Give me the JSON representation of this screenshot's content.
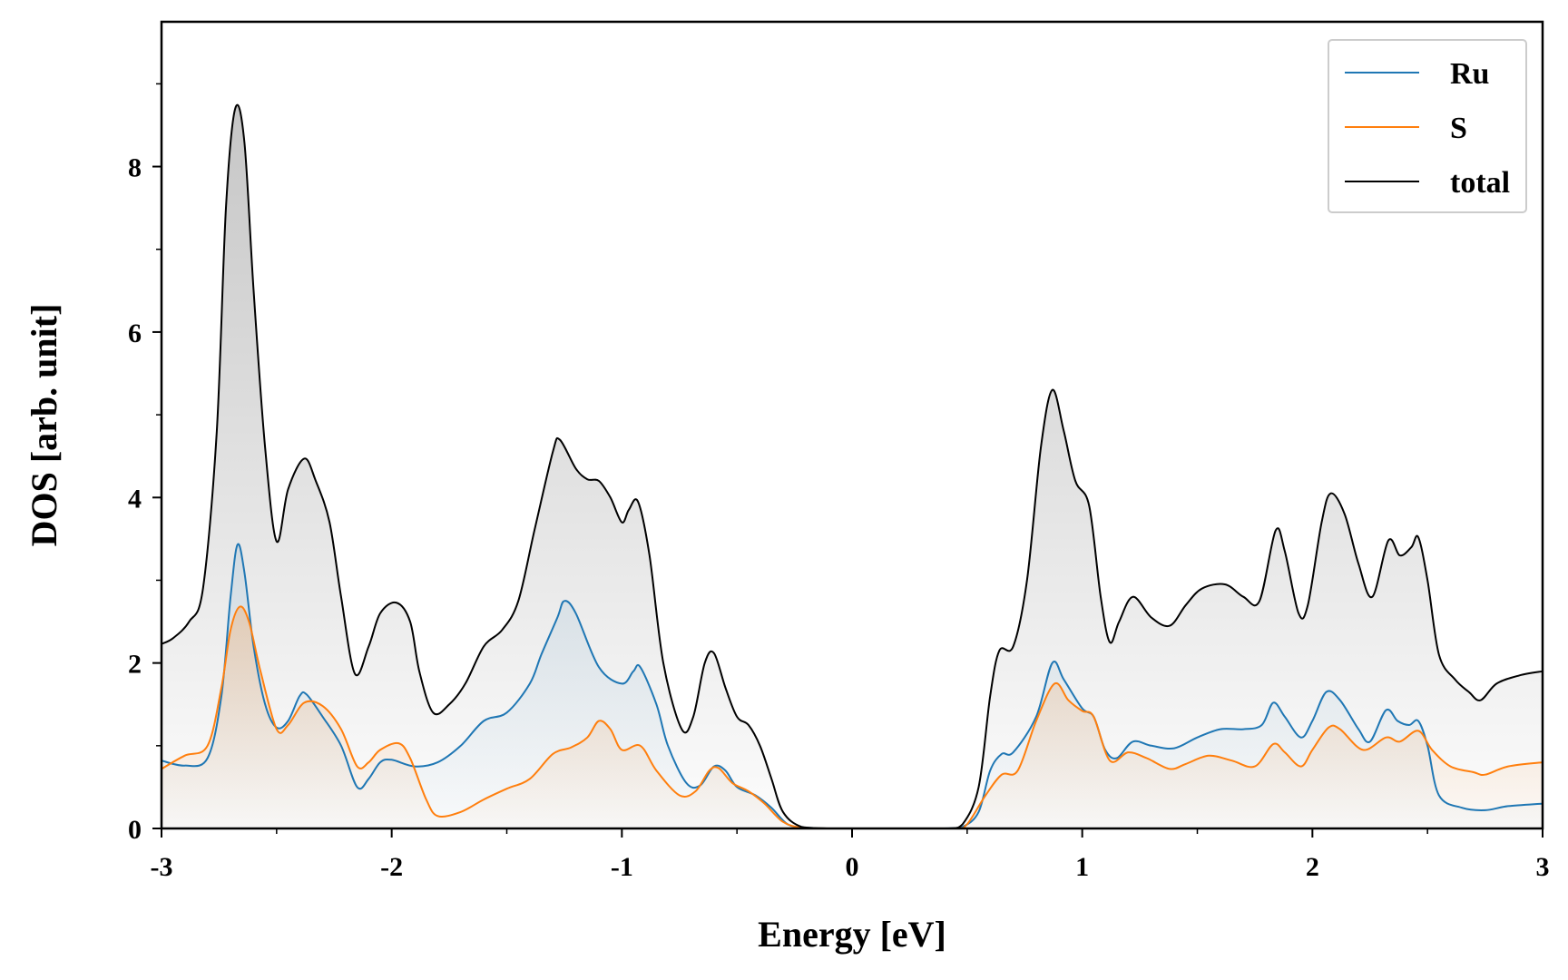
{
  "chart_data": {
    "type": "line",
    "xlabel": "Energy [eV]",
    "ylabel": "DOS [arb. unit]",
    "xlim": [
      -3,
      3
    ],
    "ylim": [
      0,
      9.75
    ],
    "xticks": [
      -3,
      -2,
      -1,
      0,
      1,
      2,
      3
    ],
    "xtick_labels": [
      "-3",
      "-2",
      "-1",
      "0",
      "1",
      "2",
      "3"
    ],
    "yticks": [
      0,
      2,
      4,
      6,
      8
    ],
    "ytick_labels": [
      "0",
      "2",
      "4",
      "6",
      "8"
    ],
    "grid": false,
    "legend_position": "top-right",
    "fill_under_curves": true,
    "series": [
      {
        "name": "Ru",
        "color": "#1f77b4",
        "points": [
          [
            -3.0,
            0.82
          ],
          [
            -2.9,
            0.76
          ],
          [
            -2.8,
            0.85
          ],
          [
            -2.74,
            1.6
          ],
          [
            -2.7,
            2.8
          ],
          [
            -2.67,
            3.43
          ],
          [
            -2.64,
            3.1
          ],
          [
            -2.6,
            2.2
          ],
          [
            -2.55,
            1.5
          ],
          [
            -2.5,
            1.22
          ],
          [
            -2.45,
            1.3
          ],
          [
            -2.4,
            1.6
          ],
          [
            -2.37,
            1.62
          ],
          [
            -2.3,
            1.35
          ],
          [
            -2.22,
            1.0
          ],
          [
            -2.15,
            0.5
          ],
          [
            -2.1,
            0.6
          ],
          [
            -2.05,
            0.8
          ],
          [
            -2.0,
            0.83
          ],
          [
            -1.9,
            0.75
          ],
          [
            -1.8,
            0.8
          ],
          [
            -1.7,
            1.0
          ],
          [
            -1.6,
            1.3
          ],
          [
            -1.5,
            1.4
          ],
          [
            -1.4,
            1.75
          ],
          [
            -1.35,
            2.1
          ],
          [
            -1.28,
            2.55
          ],
          [
            -1.25,
            2.75
          ],
          [
            -1.2,
            2.6
          ],
          [
            -1.1,
            1.95
          ],
          [
            -1.0,
            1.75
          ],
          [
            -0.95,
            1.9
          ],
          [
            -0.92,
            1.95
          ],
          [
            -0.85,
            1.5
          ],
          [
            -0.8,
            1.0
          ],
          [
            -0.72,
            0.55
          ],
          [
            -0.66,
            0.52
          ],
          [
            -0.6,
            0.75
          ],
          [
            -0.55,
            0.7
          ],
          [
            -0.5,
            0.5
          ],
          [
            -0.42,
            0.4
          ],
          [
            -0.35,
            0.25
          ],
          [
            -0.28,
            0.05
          ],
          [
            -0.2,
            0.01
          ],
          [
            -0.1,
            0.0
          ],
          [
            0.0,
            0.0
          ],
          [
            0.2,
            0.0
          ],
          [
            0.4,
            0.0
          ],
          [
            0.48,
            0.02
          ],
          [
            0.55,
            0.2
          ],
          [
            0.6,
            0.7
          ],
          [
            0.65,
            0.9
          ],
          [
            0.7,
            0.92
          ],
          [
            0.8,
            1.35
          ],
          [
            0.87,
            2.0
          ],
          [
            0.92,
            1.8
          ],
          [
            1.0,
            1.45
          ],
          [
            1.05,
            1.35
          ],
          [
            1.1,
            0.95
          ],
          [
            1.15,
            0.85
          ],
          [
            1.22,
            1.05
          ],
          [
            1.3,
            1.0
          ],
          [
            1.4,
            0.97
          ],
          [
            1.5,
            1.1
          ],
          [
            1.6,
            1.2
          ],
          [
            1.7,
            1.2
          ],
          [
            1.78,
            1.25
          ],
          [
            1.83,
            1.52
          ],
          [
            1.88,
            1.35
          ],
          [
            1.95,
            1.1
          ],
          [
            2.0,
            1.3
          ],
          [
            2.06,
            1.65
          ],
          [
            2.12,
            1.55
          ],
          [
            2.2,
            1.2
          ],
          [
            2.25,
            1.05
          ],
          [
            2.32,
            1.43
          ],
          [
            2.37,
            1.3
          ],
          [
            2.42,
            1.25
          ],
          [
            2.46,
            1.3
          ],
          [
            2.5,
            1.0
          ],
          [
            2.55,
            0.4
          ],
          [
            2.65,
            0.25
          ],
          [
            2.75,
            0.22
          ],
          [
            2.85,
            0.27
          ],
          [
            3.0,
            0.3
          ]
        ]
      },
      {
        "name": "S",
        "color": "#ff7f0e",
        "points": [
          [
            -3.0,
            0.72
          ],
          [
            -2.9,
            0.88
          ],
          [
            -2.8,
            1.0
          ],
          [
            -2.74,
            1.7
          ],
          [
            -2.7,
            2.4
          ],
          [
            -2.66,
            2.68
          ],
          [
            -2.62,
            2.5
          ],
          [
            -2.57,
            1.9
          ],
          [
            -2.5,
            1.2
          ],
          [
            -2.45,
            1.25
          ],
          [
            -2.38,
            1.52
          ],
          [
            -2.3,
            1.48
          ],
          [
            -2.22,
            1.2
          ],
          [
            -2.15,
            0.75
          ],
          [
            -2.1,
            0.8
          ],
          [
            -2.05,
            0.95
          ],
          [
            -1.97,
            1.03
          ],
          [
            -1.92,
            0.85
          ],
          [
            -1.85,
            0.35
          ],
          [
            -1.8,
            0.15
          ],
          [
            -1.7,
            0.2
          ],
          [
            -1.6,
            0.35
          ],
          [
            -1.5,
            0.48
          ],
          [
            -1.4,
            0.6
          ],
          [
            -1.3,
            0.9
          ],
          [
            -1.22,
            0.98
          ],
          [
            -1.15,
            1.1
          ],
          [
            -1.1,
            1.3
          ],
          [
            -1.05,
            1.2
          ],
          [
            -1.0,
            0.95
          ],
          [
            -0.92,
            1.0
          ],
          [
            -0.85,
            0.7
          ],
          [
            -0.75,
            0.4
          ],
          [
            -0.68,
            0.45
          ],
          [
            -0.62,
            0.7
          ],
          [
            -0.58,
            0.73
          ],
          [
            -0.52,
            0.55
          ],
          [
            -0.45,
            0.45
          ],
          [
            -0.38,
            0.3
          ],
          [
            -0.3,
            0.08
          ],
          [
            -0.22,
            0.01
          ],
          [
            -0.1,
            0.0
          ],
          [
            0.0,
            0.0
          ],
          [
            0.2,
            0.0
          ],
          [
            0.45,
            0.0
          ],
          [
            0.5,
            0.05
          ],
          [
            0.58,
            0.4
          ],
          [
            0.65,
            0.65
          ],
          [
            0.72,
            0.7
          ],
          [
            0.8,
            1.3
          ],
          [
            0.88,
            1.75
          ],
          [
            0.94,
            1.55
          ],
          [
            1.0,
            1.42
          ],
          [
            1.05,
            1.35
          ],
          [
            1.12,
            0.82
          ],
          [
            1.2,
            0.92
          ],
          [
            1.28,
            0.85
          ],
          [
            1.38,
            0.72
          ],
          [
            1.45,
            0.78
          ],
          [
            1.55,
            0.88
          ],
          [
            1.65,
            0.82
          ],
          [
            1.75,
            0.75
          ],
          [
            1.83,
            1.02
          ],
          [
            1.88,
            0.92
          ],
          [
            1.95,
            0.75
          ],
          [
            2.0,
            0.95
          ],
          [
            2.07,
            1.22
          ],
          [
            2.12,
            1.2
          ],
          [
            2.22,
            0.95
          ],
          [
            2.32,
            1.1
          ],
          [
            2.38,
            1.05
          ],
          [
            2.46,
            1.18
          ],
          [
            2.52,
            0.95
          ],
          [
            2.6,
            0.75
          ],
          [
            2.7,
            0.68
          ],
          [
            2.75,
            0.65
          ],
          [
            2.85,
            0.75
          ],
          [
            3.0,
            0.8
          ]
        ]
      },
      {
        "name": "total",
        "color": "#000000",
        "points": [
          [
            -3.0,
            2.23
          ],
          [
            -2.95,
            2.3
          ],
          [
            -2.88,
            2.5
          ],
          [
            -2.82,
            2.9
          ],
          [
            -2.76,
            4.8
          ],
          [
            -2.72,
            7.5
          ],
          [
            -2.68,
            8.7
          ],
          [
            -2.64,
            8.3
          ],
          [
            -2.6,
            6.5
          ],
          [
            -2.55,
            4.6
          ],
          [
            -2.5,
            3.47
          ],
          [
            -2.45,
            4.1
          ],
          [
            -2.38,
            4.47
          ],
          [
            -2.33,
            4.2
          ],
          [
            -2.27,
            3.7
          ],
          [
            -2.22,
            2.8
          ],
          [
            -2.16,
            1.87
          ],
          [
            -2.1,
            2.2
          ],
          [
            -2.05,
            2.6
          ],
          [
            -1.98,
            2.73
          ],
          [
            -1.92,
            2.5
          ],
          [
            -1.88,
            1.9
          ],
          [
            -1.82,
            1.4
          ],
          [
            -1.75,
            1.5
          ],
          [
            -1.68,
            1.75
          ],
          [
            -1.6,
            2.2
          ],
          [
            -1.52,
            2.4
          ],
          [
            -1.45,
            2.75
          ],
          [
            -1.38,
            3.6
          ],
          [
            -1.3,
            4.55
          ],
          [
            -1.27,
            4.7
          ],
          [
            -1.2,
            4.35
          ],
          [
            -1.15,
            4.22
          ],
          [
            -1.1,
            4.2
          ],
          [
            -1.05,
            4.0
          ],
          [
            -1.0,
            3.7
          ],
          [
            -0.97,
            3.85
          ],
          [
            -0.93,
            3.95
          ],
          [
            -0.88,
            3.3
          ],
          [
            -0.82,
            2.0
          ],
          [
            -0.74,
            1.2
          ],
          [
            -0.69,
            1.35
          ],
          [
            -0.64,
            2.0
          ],
          [
            -0.6,
            2.12
          ],
          [
            -0.55,
            1.7
          ],
          [
            -0.5,
            1.35
          ],
          [
            -0.45,
            1.25
          ],
          [
            -0.4,
            1.0
          ],
          [
            -0.35,
            0.6
          ],
          [
            -0.3,
            0.2
          ],
          [
            -0.22,
            0.02
          ],
          [
            -0.1,
            0.0
          ],
          [
            0.0,
            0.0
          ],
          [
            0.2,
            0.0
          ],
          [
            0.42,
            0.0
          ],
          [
            0.48,
            0.05
          ],
          [
            0.55,
            0.5
          ],
          [
            0.6,
            1.6
          ],
          [
            0.64,
            2.15
          ],
          [
            0.7,
            2.2
          ],
          [
            0.76,
            3.0
          ],
          [
            0.82,
            4.6
          ],
          [
            0.87,
            5.3
          ],
          [
            0.92,
            4.8
          ],
          [
            0.97,
            4.2
          ],
          [
            1.03,
            3.9
          ],
          [
            1.08,
            2.8
          ],
          [
            1.12,
            2.25
          ],
          [
            1.16,
            2.5
          ],
          [
            1.22,
            2.8
          ],
          [
            1.3,
            2.55
          ],
          [
            1.38,
            2.45
          ],
          [
            1.45,
            2.7
          ],
          [
            1.52,
            2.9
          ],
          [
            1.62,
            2.95
          ],
          [
            1.7,
            2.8
          ],
          [
            1.77,
            2.75
          ],
          [
            1.84,
            3.6
          ],
          [
            1.88,
            3.35
          ],
          [
            1.94,
            2.6
          ],
          [
            1.98,
            2.7
          ],
          [
            2.04,
            3.7
          ],
          [
            2.08,
            4.05
          ],
          [
            2.14,
            3.8
          ],
          [
            2.2,
            3.2
          ],
          [
            2.26,
            2.8
          ],
          [
            2.33,
            3.48
          ],
          [
            2.38,
            3.3
          ],
          [
            2.43,
            3.4
          ],
          [
            2.46,
            3.52
          ],
          [
            2.5,
            3.0
          ],
          [
            2.55,
            2.1
          ],
          [
            2.62,
            1.8
          ],
          [
            2.68,
            1.65
          ],
          [
            2.73,
            1.55
          ],
          [
            2.8,
            1.75
          ],
          [
            2.9,
            1.85
          ],
          [
            3.0,
            1.9
          ]
        ]
      }
    ]
  }
}
